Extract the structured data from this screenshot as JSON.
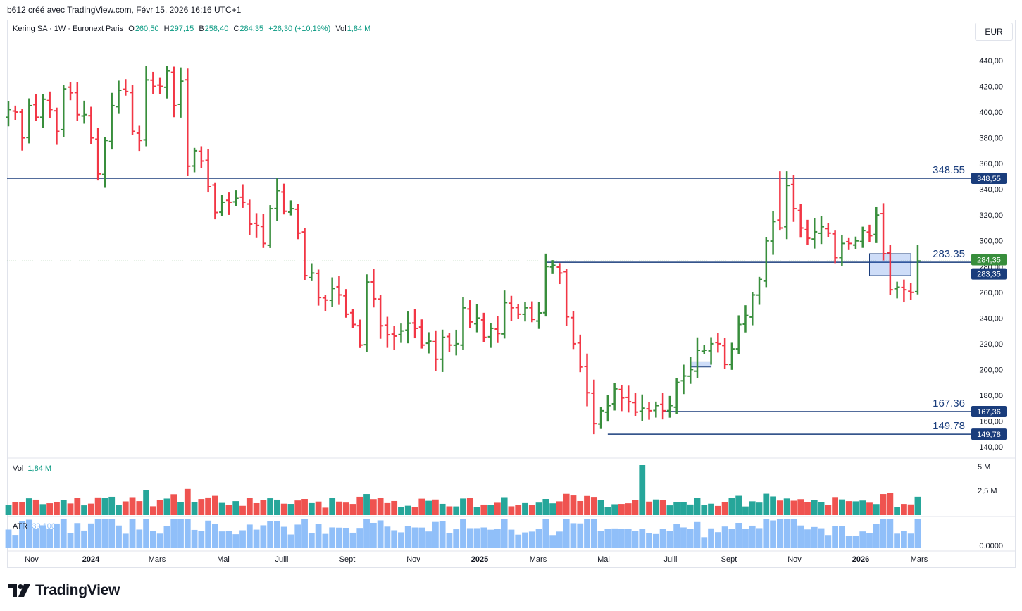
{
  "header": {
    "note": "b612 créé avec TradingView.com, Févr 15, 2026 16:16 UTC+1"
  },
  "legend": {
    "symbol": "Kering SA · 1W · Euronext Paris",
    "o_label": "O",
    "o": "260,50",
    "h_label": "H",
    "h": "297,15",
    "b_label": "B",
    "b": "258,40",
    "c_label": "C",
    "c": "284,35",
    "change": "+26,30 (+10,19%)",
    "vol_label": "Vol",
    "vol": "1,84 M"
  },
  "currency": "EUR",
  "vol_legend": {
    "label": "Vol",
    "value": "1,84 M"
  },
  "atr_legend": {
    "label": "ATR",
    "value": "39,100"
  },
  "logo_text": "TradingView",
  "colors": {
    "up": "#388e3c",
    "down": "#f23645",
    "vol_up": "#26a69a",
    "vol_down": "#ef5350",
    "atr": "#90bff9",
    "level": "#1a3d7c"
  },
  "chart_data": {
    "type": "ohlc",
    "interval": "1W",
    "yaxis_price": {
      "ticks": [
        "440,00",
        "420,00",
        "400,00",
        "380,00",
        "360,00",
        "340,00",
        "320,00",
        "300,00",
        "280,00",
        "260,00",
        "240,00",
        "220,00",
        "200,00",
        "180,00",
        "160,00",
        "140,00"
      ],
      "range": [
        134,
        458
      ]
    },
    "yaxis_volume": {
      "ticks": [
        "5 M",
        "2,5 M"
      ],
      "range": [
        0,
        5.3
      ]
    },
    "yaxis_atr": {
      "ticks": [
        "0.0000"
      ]
    },
    "xaxis": {
      "labels": [
        "Nov",
        "2024",
        "Mars",
        "Mai",
        "Juill",
        "Sept",
        "Nov",
        "2025",
        "Mars",
        "Mai",
        "Juill",
        "Sept",
        "Nov",
        "2026",
        "Mars"
      ]
    },
    "levels": [
      {
        "price": 348.55,
        "label": "348.55",
        "axis_label": "348,55",
        "start_week": 0
      },
      {
        "price": 283.35,
        "label": "283.35",
        "axis_label": "283,35",
        "start_week": 78
      },
      {
        "price": 167.36,
        "label": "167.36",
        "axis_label": "167,36",
        "start_week": 95
      },
      {
        "price": 149.78,
        "label": "149.78",
        "axis_label": "149,78",
        "start_week": 87
      }
    ],
    "last_price_label": "284,35",
    "last_price": 284.35,
    "closes": [
      402,
      400,
      380,
      405,
      396,
      410,
      402,
      385,
      418,
      415,
      398,
      398,
      380,
      352,
      378,
      405,
      417,
      416,
      385,
      378,
      425,
      420,
      420,
      432,
      405,
      424,
      358,
      370,
      362,
      342,
      322,
      330,
      330,
      333,
      330,
      313,
      312,
      298,
      325,
      339,
      323,
      325,
      306,
      273,
      275,
      256,
      254,
      263,
      258,
      243,
      235,
      219,
      268,
      255,
      234,
      227,
      226,
      230,
      236,
      232,
      219,
      222,
      208,
      225,
      219,
      220,
      248,
      237,
      240,
      225,
      232,
      228,
      252,
      248,
      243,
      248,
      239,
      244,
      280,
      281,
      275,
      241,
      220,
      202,
      182,
      158,
      168,
      172,
      185,
      178,
      175,
      167,
      170,
      168,
      172,
      168,
      172,
      190,
      195,
      200,
      215,
      215,
      220,
      220,
      204,
      216,
      235,
      242,
      258,
      270,
      300,
      315,
      310,
      343,
      325,
      310,
      302,
      307,
      311,
      306,
      287,
      298,
      298,
      300,
      308,
      304,
      320,
      290,
      262,
      264,
      262,
      260,
      284
    ]
  }
}
